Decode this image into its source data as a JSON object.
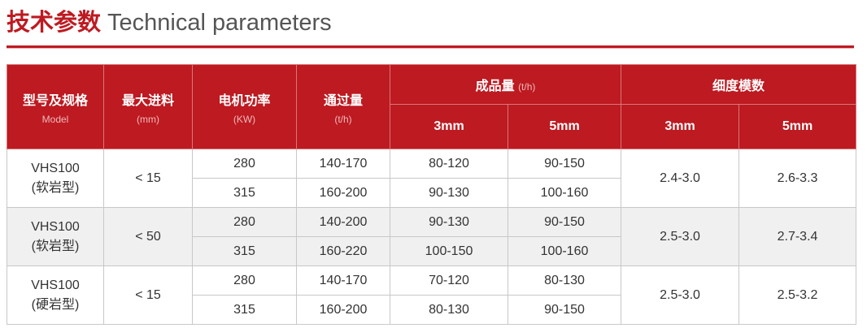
{
  "title": {
    "cn": "技术参数",
    "en": "Technical parameters"
  },
  "accent": "#be1a21",
  "headers": {
    "model": {
      "label": "型号及规格",
      "sub": "Model"
    },
    "feed": {
      "label": "最大进料",
      "sub": "(mm)"
    },
    "power": {
      "label": "电机功率",
      "sub": "(KW)"
    },
    "throughput": {
      "label": "通过量",
      "sub": "(t/h)"
    },
    "output": {
      "label": "成品量",
      "unit": "(t/h)",
      "c1": "3mm",
      "c2": "5mm"
    },
    "fineness": {
      "label": "细度模数",
      "c1": "3mm",
      "c2": "5mm"
    }
  },
  "groups": [
    {
      "model": "VHS100",
      "type": "(软岩型)",
      "feed": "< 15",
      "fm3": "2.4-3.0",
      "fm5": "2.6-3.3",
      "rows": [
        {
          "power": "280",
          "through": "140-170",
          "o3": "80-120",
          "o5": "90-150"
        },
        {
          "power": "315",
          "through": "160-200",
          "o3": "90-130",
          "o5": "100-160"
        }
      ]
    },
    {
      "model": "VHS100",
      "type": "(软岩型)",
      "feed": "< 50",
      "fm3": "2.5-3.0",
      "fm5": "2.7-3.4",
      "rows": [
        {
          "power": "280",
          "through": "140-200",
          "o3": "90-130",
          "o5": "90-150"
        },
        {
          "power": "315",
          "through": "160-220",
          "o3": "100-150",
          "o5": "100-160"
        }
      ]
    },
    {
      "model": "VHS100",
      "type": "(硬岩型)",
      "feed": "< 15",
      "fm3": "2.5-3.0",
      "fm5": "2.5-3.2",
      "rows": [
        {
          "power": "280",
          "through": "140-170",
          "o3": "70-120",
          "o5": "80-130"
        },
        {
          "power": "315",
          "through": "160-200",
          "o3": "80-130",
          "o5": "90-150"
        }
      ]
    }
  ]
}
